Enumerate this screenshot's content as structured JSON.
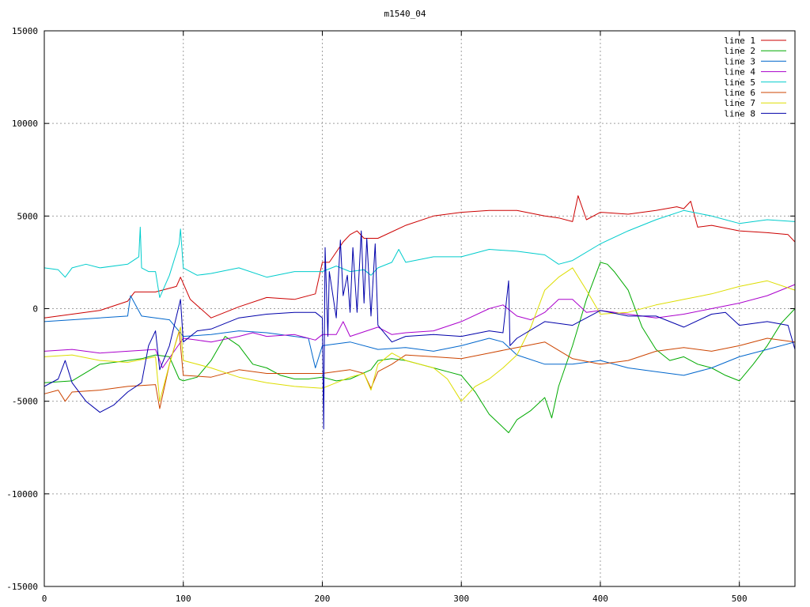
{
  "chart_data": {
    "type": "line",
    "title": "m1540_04",
    "xlabel": "",
    "ylabel": "",
    "xlim": [
      0,
      540
    ],
    "ylim": [
      -15000,
      15000
    ],
    "xticks": [
      0,
      100,
      200,
      300,
      400,
      500
    ],
    "yticks": [
      -15000,
      -10000,
      -5000,
      0,
      5000,
      10000,
      15000
    ],
    "grid": true,
    "legend_position": "top-right",
    "series": [
      {
        "name": "line 1",
        "color": "#cc0000",
        "x": [
          0,
          20,
          40,
          60,
          65,
          80,
          95,
          98,
          105,
          120,
          140,
          160,
          180,
          195,
          200,
          205,
          215,
          220,
          225,
          230,
          240,
          260,
          280,
          300,
          320,
          340,
          360,
          370,
          380,
          384,
          390,
          400,
          420,
          440,
          455,
          460,
          465,
          470,
          480,
          500,
          520,
          535,
          540
        ],
        "y": [
          -500,
          -300,
          -100,
          400,
          900,
          900,
          1200,
          1700,
          500,
          -500,
          100,
          600,
          500,
          800,
          2500,
          2500,
          3600,
          4000,
          4200,
          3800,
          3800,
          4500,
          5000,
          5200,
          5300,
          5300,
          5000,
          4900,
          4700,
          6100,
          4800,
          5200,
          5100,
          5300,
          5500,
          5400,
          5800,
          4400,
          4500,
          4200,
          4100,
          4000,
          3600
        ]
      },
      {
        "name": "line 2",
        "color": "#00aa00",
        "x": [
          0,
          20,
          40,
          60,
          70,
          80,
          90,
          97,
          100,
          110,
          120,
          130,
          140,
          150,
          160,
          170,
          180,
          190,
          200,
          210,
          220,
          235,
          240,
          250,
          260,
          270,
          280,
          290,
          300,
          310,
          320,
          334,
          340,
          350,
          360,
          365,
          370,
          380,
          390,
          400,
          405,
          410,
          420,
          430,
          440,
          450,
          460,
          470,
          480,
          490,
          500,
          510,
          520,
          530,
          540
        ],
        "y": [
          -4000,
          -3900,
          -3000,
          -2800,
          -2700,
          -2500,
          -2600,
          -3800,
          -3900,
          -3700,
          -2800,
          -1500,
          -2000,
          -3000,
          -3200,
          -3600,
          -3800,
          -3800,
          -3700,
          -3900,
          -3800,
          -3300,
          -2800,
          -2700,
          -2800,
          -3000,
          -3200,
          -3400,
          -3600,
          -4500,
          -5700,
          -6700,
          -6000,
          -5500,
          -4800,
          -5900,
          -4200,
          -2000,
          500,
          2500,
          2400,
          2000,
          1000,
          -1000,
          -2200,
          -2800,
          -2600,
          -3000,
          -3200,
          -3600,
          -3900,
          -3000,
          -2000,
          -800,
          0
        ]
      },
      {
        "name": "line 3",
        "color": "#0066cc",
        "x": [
          0,
          20,
          40,
          60,
          62,
          70,
          80,
          90,
          100,
          120,
          140,
          160,
          180,
          190,
          195,
          200,
          220,
          240,
          260,
          280,
          300,
          320,
          330,
          340,
          360,
          380,
          400,
          420,
          440,
          460,
          480,
          500,
          520,
          540
        ],
        "y": [
          -700,
          -600,
          -500,
          -400,
          700,
          -400,
          -500,
          -600,
          -1500,
          -1400,
          -1200,
          -1300,
          -1500,
          -1600,
          -3200,
          -2000,
          -1800,
          -2200,
          -2100,
          -2300,
          -2000,
          -1600,
          -1800,
          -2500,
          -3000,
          -3000,
          -2800,
          -3200,
          -3400,
          -3600,
          -3200,
          -2600,
          -2200,
          -1800
        ]
      },
      {
        "name": "line 4",
        "color": "#aa00cc",
        "x": [
          0,
          20,
          40,
          60,
          80,
          85,
          100,
          110,
          120,
          140,
          150,
          160,
          180,
          195,
          200,
          210,
          215,
          220,
          240,
          250,
          260,
          280,
          300,
          320,
          330,
          340,
          350,
          360,
          370,
          380,
          390,
          400,
          420,
          440,
          460,
          480,
          500,
          520,
          540
        ],
        "y": [
          -2300,
          -2200,
          -2400,
          -2300,
          -2200,
          -3200,
          -1600,
          -1700,
          -1800,
          -1500,
          -1300,
          -1500,
          -1400,
          -1700,
          -1400,
          -1400,
          -700,
          -1500,
          -1000,
          -1400,
          -1300,
          -1200,
          -700,
          0,
          200,
          -400,
          -600,
          -200,
          500,
          500,
          -200,
          -100,
          -300,
          -500,
          -300,
          0,
          300,
          700,
          1300
        ]
      },
      {
        "name": "line 5",
        "color": "#00cccc",
        "x": [
          0,
          10,
          15,
          20,
          30,
          40,
          60,
          68,
          69,
          70,
          75,
          80,
          83,
          90,
          97,
          98,
          100,
          110,
          120,
          140,
          160,
          180,
          200,
          210,
          220,
          230,
          235,
          240,
          250,
          255,
          260,
          280,
          300,
          320,
          340,
          360,
          370,
          380,
          400,
          420,
          440,
          460,
          480,
          490,
          500,
          520,
          540
        ],
        "y": [
          2200,
          2100,
          1700,
          2200,
          2400,
          2200,
          2400,
          2800,
          4400,
          2200,
          2000,
          2000,
          600,
          1800,
          3500,
          4300,
          2200,
          1800,
          1900,
          2200,
          1700,
          2000,
          2000,
          2300,
          2000,
          2100,
          1800,
          2200,
          2500,
          3200,
          2500,
          2800,
          2800,
          3200,
          3100,
          2900,
          2400,
          2600,
          3500,
          4200,
          4800,
          5300,
          5000,
          4800,
          4600,
          4800,
          4700
        ]
      },
      {
        "name": "line 6",
        "color": "#cc4400",
        "x": [
          0,
          10,
          15,
          20,
          40,
          60,
          80,
          83,
          90,
          97,
          100,
          120,
          140,
          160,
          180,
          200,
          220,
          230,
          235,
          240,
          250,
          260,
          280,
          300,
          320,
          340,
          360,
          380,
          400,
          420,
          440,
          460,
          480,
          500,
          520,
          540
        ],
        "y": [
          -4600,
          -4400,
          -5000,
          -4500,
          -4400,
          -4200,
          -4100,
          -5400,
          -3000,
          -1200,
          -3600,
          -3700,
          -3300,
          -3500,
          -3500,
          -3500,
          -3300,
          -3500,
          -4300,
          -3400,
          -3000,
          -2500,
          -2600,
          -2700,
          -2400,
          -2100,
          -1800,
          -2700,
          -3000,
          -2800,
          -2300,
          -2100,
          -2300,
          -2000,
          -1600,
          -1800
        ]
      },
      {
        "name": "line 7",
        "color": "#dddd00",
        "x": [
          0,
          20,
          40,
          60,
          80,
          83,
          90,
          98,
          100,
          120,
          140,
          160,
          180,
          200,
          220,
          230,
          235,
          240,
          250,
          260,
          280,
          290,
          300,
          310,
          320,
          330,
          340,
          350,
          360,
          370,
          380,
          390,
          400,
          420,
          440,
          460,
          480,
          500,
          520,
          540
        ],
        "y": [
          -2600,
          -2500,
          -2800,
          -2900,
          -2600,
          -5000,
          -3000,
          -1000,
          -2800,
          -3200,
          -3700,
          -4000,
          -4200,
          -4300,
          -3700,
          -3500,
          -4400,
          -3000,
          -2400,
          -2800,
          -3200,
          -3800,
          -5000,
          -4200,
          -3800,
          -3200,
          -2500,
          -1000,
          1000,
          1700,
          2200,
          1000,
          -300,
          -200,
          200,
          500,
          800,
          1200,
          1500,
          1000
        ]
      },
      {
        "name": "line 8",
        "color": "#0000aa",
        "x": [
          0,
          10,
          15,
          20,
          30,
          40,
          50,
          60,
          70,
          75,
          80,
          83,
          90,
          98,
          100,
          110,
          120,
          130,
          140,
          160,
          180,
          195,
          200,
          201,
          202,
          204,
          205,
          210,
          213,
          215,
          218,
          220,
          222,
          225,
          228,
          230,
          232,
          235,
          238,
          240,
          250,
          260,
          280,
          300,
          320,
          330,
          334,
          335,
          340,
          360,
          380,
          400,
          420,
          440,
          460,
          480,
          490,
          500,
          520,
          535,
          540
        ],
        "y": [
          -4200,
          -3800,
          -2800,
          -4000,
          -5000,
          -5600,
          -5200,
          -4500,
          -4000,
          -2000,
          -1200,
          -3300,
          -2000,
          500,
          -1800,
          -1200,
          -1100,
          -800,
          -500,
          -300,
          -200,
          -200,
          -500,
          -6500,
          3300,
          -1500,
          2000,
          -500,
          3700,
          700,
          1800,
          -200,
          3300,
          -200,
          4200,
          300,
          3800,
          -400,
          3500,
          -900,
          -1800,
          -1500,
          -1400,
          -1500,
          -1200,
          -1300,
          1500,
          -2000,
          -1600,
          -700,
          -900,
          -100,
          -400,
          -400,
          -1000,
          -300,
          -200,
          -900,
          -700,
          -900,
          -2200
        ]
      }
    ]
  }
}
